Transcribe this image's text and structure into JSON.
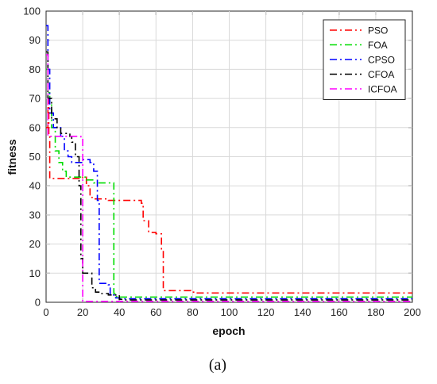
{
  "chart_data": {
    "type": "line",
    "title": "",
    "xlabel": "epoch",
    "ylabel": "fitness",
    "xlim": [
      0,
      200
    ],
    "ylim": [
      0,
      100
    ],
    "xticks": [
      0,
      20,
      40,
      60,
      80,
      100,
      120,
      140,
      160,
      180,
      200
    ],
    "yticks": [
      0,
      10,
      20,
      30,
      40,
      50,
      60,
      70,
      80,
      90,
      100
    ],
    "grid": true,
    "legend_position": "top-right",
    "caption": "(a)",
    "series": [
      {
        "name": "PSO",
        "color": "#ff0000",
        "dash": "dash-dot",
        "points": [
          [
            0,
            60
          ],
          [
            1,
            60
          ],
          [
            1,
            70
          ],
          [
            1.5,
            70
          ],
          [
            1.5,
            58
          ],
          [
            2,
            58
          ],
          [
            2,
            42.5
          ],
          [
            20,
            42.5
          ],
          [
            20,
            43
          ],
          [
            22,
            43
          ],
          [
            22,
            40
          ],
          [
            24,
            40
          ],
          [
            24,
            36
          ],
          [
            26,
            36
          ],
          [
            26,
            35.5
          ],
          [
            34,
            35.5
          ],
          [
            34,
            35
          ],
          [
            52,
            35
          ],
          [
            52,
            34
          ],
          [
            53,
            34
          ],
          [
            53,
            28
          ],
          [
            56,
            28
          ],
          [
            56,
            24
          ],
          [
            60,
            24
          ],
          [
            60,
            23.5
          ],
          [
            63,
            23.5
          ],
          [
            63,
            18
          ],
          [
            64,
            18
          ],
          [
            64,
            4
          ],
          [
            79,
            4
          ],
          [
            79,
            3.5
          ],
          [
            82,
            3.5
          ],
          [
            82,
            3.2
          ],
          [
            200,
            3.2
          ]
        ]
      },
      {
        "name": "FOA",
        "color": "#00dd00",
        "dash": "dash-dot",
        "points": [
          [
            0,
            80
          ],
          [
            1,
            80
          ],
          [
            1,
            72
          ],
          [
            2,
            72
          ],
          [
            2,
            68
          ],
          [
            3,
            68
          ],
          [
            3,
            60
          ],
          [
            5,
            60
          ],
          [
            5,
            52
          ],
          [
            7,
            52
          ],
          [
            7,
            48
          ],
          [
            9,
            48
          ],
          [
            9,
            45
          ],
          [
            11,
            45
          ],
          [
            11,
            43
          ],
          [
            22,
            43
          ],
          [
            22,
            42
          ],
          [
            26,
            42
          ],
          [
            26,
            41
          ],
          [
            37,
            41
          ],
          [
            37,
            3
          ],
          [
            38,
            3
          ],
          [
            38,
            2
          ],
          [
            39,
            2
          ],
          [
            39,
            1.8
          ],
          [
            200,
            1.8
          ]
        ]
      },
      {
        "name": "CPSO",
        "color": "#0000ff",
        "dash": "dash-dot",
        "points": [
          [
            0,
            95
          ],
          [
            1,
            95
          ],
          [
            1,
            80
          ],
          [
            2,
            80
          ],
          [
            2,
            65
          ],
          [
            4,
            65
          ],
          [
            4,
            60
          ],
          [
            8,
            60
          ],
          [
            8,
            57
          ],
          [
            10,
            57
          ],
          [
            10,
            52
          ],
          [
            12,
            52
          ],
          [
            12,
            50
          ],
          [
            14,
            50
          ],
          [
            14,
            48
          ],
          [
            20,
            48
          ],
          [
            20,
            49
          ],
          [
            24,
            49
          ],
          [
            24,
            48
          ],
          [
            26,
            48
          ],
          [
            26,
            45
          ],
          [
            28,
            45
          ],
          [
            28,
            35
          ],
          [
            29,
            35
          ],
          [
            29,
            6.5
          ],
          [
            34,
            6.5
          ],
          [
            34,
            6
          ],
          [
            35,
            6
          ],
          [
            35,
            2.5
          ],
          [
            38,
            2.5
          ],
          [
            38,
            1.5
          ],
          [
            40,
            1.5
          ],
          [
            40,
            1.2
          ],
          [
            200,
            1.2
          ]
        ]
      },
      {
        "name": "CFOA",
        "color": "#000000",
        "dash": "dash-dot",
        "points": [
          [
            0,
            86
          ],
          [
            1,
            86
          ],
          [
            1,
            70
          ],
          [
            3,
            70
          ],
          [
            3,
            63
          ],
          [
            6,
            63
          ],
          [
            6,
            60
          ],
          [
            8,
            60
          ],
          [
            8,
            58
          ],
          [
            13,
            58
          ],
          [
            13,
            57
          ],
          [
            14,
            57
          ],
          [
            14,
            55
          ],
          [
            16,
            55
          ],
          [
            16,
            50
          ],
          [
            18,
            50
          ],
          [
            18,
            40
          ],
          [
            19,
            40
          ],
          [
            19,
            15
          ],
          [
            20,
            15
          ],
          [
            20,
            10
          ],
          [
            25,
            10
          ],
          [
            25,
            5
          ],
          [
            27,
            5
          ],
          [
            27,
            3.5
          ],
          [
            30,
            3.5
          ],
          [
            30,
            3
          ],
          [
            34,
            3
          ],
          [
            34,
            2.5
          ],
          [
            40,
            2.5
          ],
          [
            40,
            1
          ],
          [
            42,
            1
          ],
          [
            42,
            0.8
          ],
          [
            200,
            0.8
          ]
        ]
      },
      {
        "name": "ICFOA",
        "color": "#ff00ff",
        "dash": "dash-dot",
        "points": [
          [
            0,
            85
          ],
          [
            1,
            85
          ],
          [
            1,
            57
          ],
          [
            19,
            57
          ],
          [
            19,
            56.5
          ],
          [
            20,
            56.5
          ],
          [
            20,
            0.3
          ],
          [
            200,
            0.3
          ]
        ]
      }
    ]
  }
}
